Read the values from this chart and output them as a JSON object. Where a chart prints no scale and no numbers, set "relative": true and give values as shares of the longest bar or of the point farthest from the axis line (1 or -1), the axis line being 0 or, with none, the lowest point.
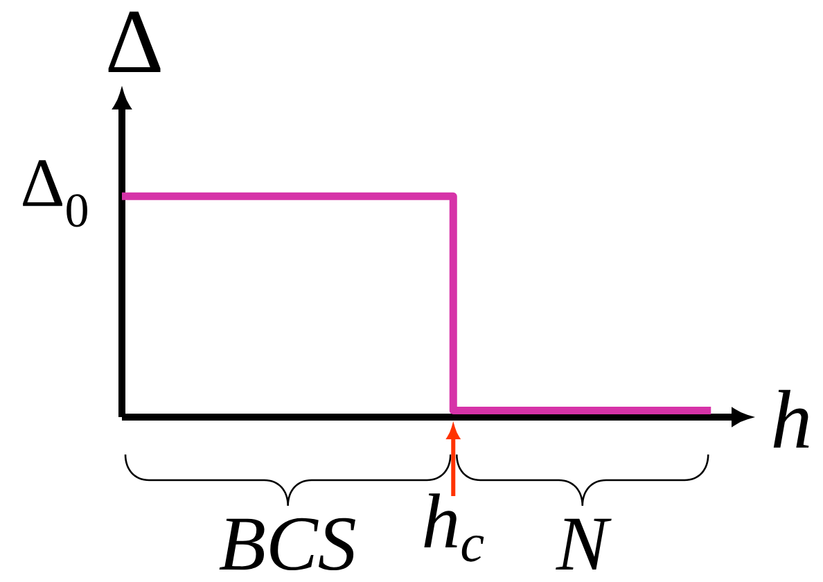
{
  "chart_data": {
    "type": "step",
    "xlabel": "h",
    "ylabel": "Δ",
    "categories": [
      null,
      null,
      null,
      null,
      null,
      null,
      null,
      null,
      null,
      null,
      null,
      null,
      null,
      null,
      null,
      null,
      null
    ],
    "values": [
      1,
      1,
      1,
      1,
      1,
      1,
      1,
      1,
      1,
      0.03,
      0.03,
      0.03,
      0.03,
      0.03,
      0.03,
      0.03,
      0.03
    ],
    "color": "#d633a8",
    "relative": true,
    "annotations": [
      "Δ$_{0}$",
      "BCS",
      "h$_{c}$",
      "N"
    ]
  }
}
